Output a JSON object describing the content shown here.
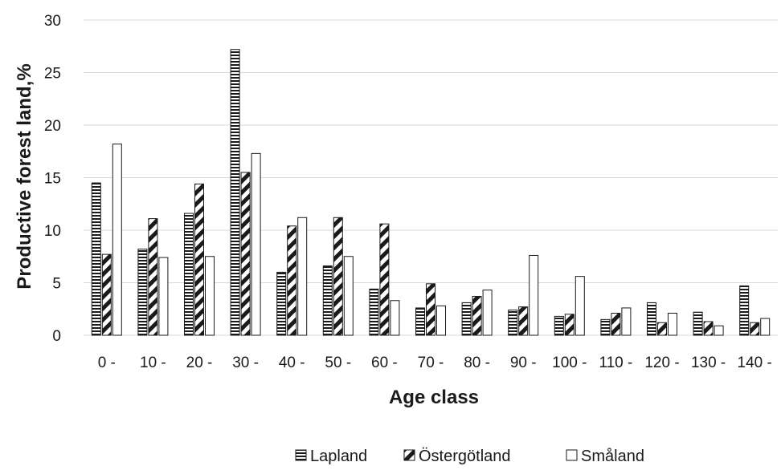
{
  "chart_data": {
    "type": "bar",
    "title": "",
    "xlabel": "Age class",
    "ylabel": "Productive forest land,%",
    "ylim": [
      0,
      30
    ],
    "yticks": [
      0,
      5,
      10,
      15,
      20,
      25,
      30
    ],
    "grid": true,
    "legend_position": "bottom",
    "categories": [
      "0 -",
      "10 -",
      "20 -",
      "30 -",
      "40 -",
      "50 -",
      "60 -",
      "70 -",
      "80 -",
      "90 -",
      "100 -",
      "110 -",
      "120 -",
      "130 -",
      "140 -"
    ],
    "series": [
      {
        "name": "Lapland",
        "pattern": "horizontal-stripes",
        "values": [
          14.5,
          8.2,
          11.6,
          27.2,
          6.0,
          6.6,
          4.4,
          2.6,
          3.1,
          2.4,
          1.8,
          1.5,
          3.1,
          2.2,
          4.7
        ]
      },
      {
        "name": "Östergötland",
        "pattern": "diagonal-black",
        "values": [
          7.7,
          11.1,
          14.4,
          15.5,
          10.4,
          11.2,
          10.6,
          4.9,
          3.7,
          2.7,
          2.0,
          2.1,
          1.2,
          1.3,
          1.2
        ]
      },
      {
        "name": "Småland",
        "pattern": "white",
        "values": [
          18.2,
          7.4,
          7.5,
          17.3,
          11.2,
          7.5,
          3.3,
          2.8,
          4.3,
          7.6,
          5.6,
          2.6,
          2.1,
          0.9,
          1.6
        ]
      }
    ]
  },
  "colors": {
    "bar_stroke": "#1a1a1a",
    "grid": "#d9d9d9",
    "text": "#1a1a1a"
  }
}
